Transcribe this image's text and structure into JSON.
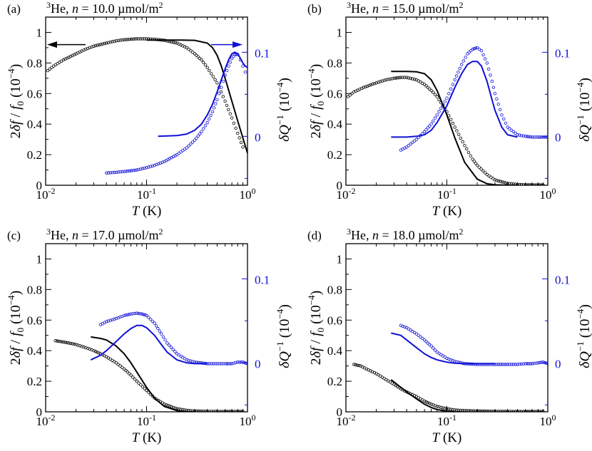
{
  "colors": {
    "black": "#000000",
    "blue": "#1010d8"
  },
  "chart_data": [
    {
      "type": "scatter",
      "panel": "(a)",
      "title": "3He, n = 10.0 µmol/m2",
      "title_parts": {
        "iso": "3",
        "el": "He, ",
        "n": "n",
        "eq": " = 10.0 µmol/m",
        "exp": "2"
      },
      "xlabel": "T (K)",
      "xscale": "log",
      "xlim": [
        0.01,
        1.0
      ],
      "ylabel_left": "2δf / f0 (10^-4)",
      "ylim_left": [
        0,
        1.1
      ],
      "ylabel_right": "δQ^-1 (10^-4)",
      "right_ticks": [
        "0",
        "0.1"
      ],
      "right_zero_at_left": 0.32,
      "right_tenth_at_left": 0.87,
      "arrows": "left-arrow on frequency data, right-arrow on dissipation data",
      "series": [
        {
          "name": "frequency shift data",
          "axis": "left",
          "marker": "open-circle",
          "x": [
            0.0105,
            0.012,
            0.015,
            0.02,
            0.025,
            0.03,
            0.04,
            0.05,
            0.06,
            0.08,
            0.1,
            0.12,
            0.15,
            0.2,
            0.25,
            0.3,
            0.35,
            0.4,
            0.5,
            0.6,
            0.7,
            0.8,
            0.9
          ],
          "y": [
            0.75,
            0.78,
            0.82,
            0.86,
            0.89,
            0.91,
            0.93,
            0.945,
            0.952,
            0.958,
            0.958,
            0.955,
            0.948,
            0.93,
            0.9,
            0.86,
            0.82,
            0.77,
            0.67,
            0.55,
            0.44,
            0.34,
            0.25
          ]
        },
        {
          "name": "frequency shift fit",
          "axis": "left",
          "marker": "line",
          "x": [
            0.1,
            0.2,
            0.3,
            0.4,
            0.45,
            0.5,
            0.55,
            0.6,
            0.7,
            0.8,
            0.9,
            1.0
          ],
          "y": [
            0.95,
            0.95,
            0.948,
            0.93,
            0.9,
            0.85,
            0.78,
            0.7,
            0.55,
            0.42,
            0.31,
            0.21
          ]
        },
        {
          "name": "dissipation data",
          "axis": "right",
          "marker": "open-circle",
          "x": [
            0.04,
            0.05,
            0.06,
            0.08,
            0.1,
            0.12,
            0.15,
            0.2,
            0.25,
            0.3,
            0.35,
            0.4,
            0.45,
            0.5,
            0.55,
            0.6,
            0.65,
            0.7,
            0.75,
            0.8,
            0.85,
            0.9,
            0.95
          ],
          "y": [
            0.08,
            0.085,
            0.09,
            0.1,
            0.115,
            0.13,
            0.155,
            0.2,
            0.245,
            0.295,
            0.35,
            0.41,
            0.48,
            0.56,
            0.64,
            0.72,
            0.78,
            0.83,
            0.855,
            0.855,
            0.82,
            0.78,
            0.74
          ]
        },
        {
          "name": "dissipation fit",
          "axis": "right",
          "marker": "line",
          "x": [
            0.13,
            0.2,
            0.25,
            0.3,
            0.35,
            0.4,
            0.45,
            0.5,
            0.55,
            0.6,
            0.65,
            0.7,
            0.75,
            0.8,
            0.85,
            0.9,
            0.95,
            1.0
          ],
          "y": [
            0.32,
            0.325,
            0.335,
            0.36,
            0.4,
            0.46,
            0.53,
            0.61,
            0.69,
            0.76,
            0.82,
            0.86,
            0.87,
            0.86,
            0.83,
            0.8,
            0.78,
            0.77
          ]
        }
      ]
    },
    {
      "type": "scatter",
      "panel": "(b)",
      "title": "3He, n = 15.0 µmol/m2",
      "title_parts": {
        "iso": "3",
        "el": "He, ",
        "n": "n",
        "eq": " = 15.0 µmol/m",
        "exp": "2"
      },
      "xlabel": "T (K)",
      "xscale": "log",
      "xlim": [
        0.01,
        1.0
      ],
      "ylabel_left": "2δf / f0 (10^-4)",
      "ylim_left": [
        0,
        1.1
      ],
      "ylabel_right": "δQ^-1 (10^-4)",
      "right_ticks": [
        "0",
        "0.1"
      ],
      "right_zero_at_left": 0.32,
      "right_tenth_at_left": 0.87,
      "series": [
        {
          "name": "frequency shift data",
          "axis": "left",
          "marker": "open-circle",
          "x": [
            0.0105,
            0.012,
            0.015,
            0.02,
            0.025,
            0.03,
            0.035,
            0.04,
            0.05,
            0.06,
            0.07,
            0.08,
            0.1,
            0.12,
            0.15,
            0.18,
            0.2,
            0.25,
            0.3,
            0.4,
            0.5,
            0.6,
            0.7,
            0.8,
            0.9
          ],
          "y": [
            0.58,
            0.61,
            0.64,
            0.67,
            0.69,
            0.7,
            0.705,
            0.705,
            0.69,
            0.66,
            0.62,
            0.58,
            0.48,
            0.38,
            0.26,
            0.17,
            0.13,
            0.07,
            0.035,
            0.012,
            0.005,
            0.003,
            0.002,
            0.002,
            0.002
          ]
        },
        {
          "name": "frequency shift fit",
          "axis": "left",
          "marker": "line",
          "x": [
            0.028,
            0.04,
            0.05,
            0.06,
            0.07,
            0.08,
            0.1,
            0.12,
            0.15,
            0.2,
            0.25,
            0.3,
            0.4,
            0.5
          ],
          "y": [
            0.745,
            0.745,
            0.742,
            0.73,
            0.69,
            0.62,
            0.46,
            0.31,
            0.15,
            0.04,
            0.01,
            0.003,
            0.0,
            0.0
          ]
        },
        {
          "name": "dissipation data",
          "axis": "right",
          "marker": "open-circle",
          "x": [
            0.035,
            0.04,
            0.05,
            0.06,
            0.07,
            0.08,
            0.1,
            0.12,
            0.14,
            0.16,
            0.18,
            0.2,
            0.22,
            0.25,
            0.28,
            0.3,
            0.35,
            0.4,
            0.5,
            0.6,
            0.7,
            0.8,
            0.9,
            1.0
          ],
          "y": [
            0.23,
            0.25,
            0.3,
            0.35,
            0.4,
            0.46,
            0.57,
            0.69,
            0.79,
            0.86,
            0.89,
            0.9,
            0.88,
            0.8,
            0.68,
            0.6,
            0.46,
            0.38,
            0.33,
            0.32,
            0.315,
            0.315,
            0.315,
            0.315
          ]
        },
        {
          "name": "dissipation fit",
          "axis": "right",
          "marker": "line",
          "x": [
            0.028,
            0.04,
            0.05,
            0.06,
            0.07,
            0.08,
            0.1,
            0.12,
            0.14,
            0.16,
            0.18,
            0.2,
            0.22,
            0.25,
            0.28,
            0.3,
            0.35,
            0.4,
            0.5
          ],
          "y": [
            0.315,
            0.315,
            0.32,
            0.33,
            0.36,
            0.41,
            0.52,
            0.64,
            0.73,
            0.79,
            0.81,
            0.81,
            0.78,
            0.68,
            0.56,
            0.49,
            0.38,
            0.33,
            0.315
          ]
        }
      ]
    },
    {
      "type": "scatter",
      "panel": "(c)",
      "title": "3He, n = 17.0 µmol/m2",
      "title_parts": {
        "iso": "3",
        "el": "He, ",
        "n": "n",
        "eq": " = 17.0 µmol/m",
        "exp": "2"
      },
      "xlabel": "T (K)",
      "xscale": "log",
      "xlim": [
        0.01,
        1.0
      ],
      "ylabel_left": "2δf / f0 (10^-4)",
      "ylim_left": [
        0,
        1.1
      ],
      "ylabel_right": "δQ^-1 (10^-4)",
      "right_ticks": [
        "0",
        "0.1"
      ],
      "right_zero_at_left": 0.32,
      "right_tenth_at_left": 0.87,
      "series": [
        {
          "name": "frequency shift data",
          "axis": "left",
          "marker": "open-circle",
          "x": [
            0.0125,
            0.014,
            0.017,
            0.02,
            0.025,
            0.03,
            0.035,
            0.04,
            0.05,
            0.06,
            0.07,
            0.08,
            0.1,
            0.12,
            0.15,
            0.2,
            0.25,
            0.3,
            0.4,
            0.5,
            0.6,
            0.7,
            0.8,
            0.9
          ],
          "y": [
            0.465,
            0.46,
            0.45,
            0.44,
            0.42,
            0.4,
            0.38,
            0.36,
            0.32,
            0.28,
            0.24,
            0.2,
            0.14,
            0.09,
            0.05,
            0.02,
            0.01,
            0.005,
            0.003,
            0.002,
            0.002,
            0.002,
            0.002,
            0.002
          ]
        },
        {
          "name": "frequency shift fit",
          "axis": "left",
          "marker": "line",
          "x": [
            0.028,
            0.035,
            0.04,
            0.05,
            0.06,
            0.07,
            0.08,
            0.1,
            0.12,
            0.15,
            0.2,
            0.25,
            0.3
          ],
          "y": [
            0.49,
            0.48,
            0.47,
            0.43,
            0.38,
            0.32,
            0.26,
            0.16,
            0.09,
            0.035,
            0.008,
            0.002,
            0.0
          ]
        },
        {
          "name": "dissipation data",
          "axis": "right",
          "marker": "open-circle",
          "x": [
            0.035,
            0.04,
            0.05,
            0.06,
            0.07,
            0.08,
            0.09,
            0.1,
            0.12,
            0.14,
            0.16,
            0.2,
            0.25,
            0.3,
            0.4,
            0.5,
            0.6,
            0.7,
            0.8,
            0.9,
            1.0
          ],
          "y": [
            0.57,
            0.59,
            0.61,
            0.63,
            0.64,
            0.645,
            0.64,
            0.63,
            0.58,
            0.51,
            0.45,
            0.38,
            0.34,
            0.325,
            0.315,
            0.315,
            0.315,
            0.315,
            0.325,
            0.325,
            0.315
          ]
        },
        {
          "name": "dissipation fit",
          "axis": "right",
          "marker": "line",
          "x": [
            0.028,
            0.035,
            0.04,
            0.05,
            0.06,
            0.07,
            0.08,
            0.09,
            0.1,
            0.12,
            0.14,
            0.16,
            0.2,
            0.25,
            0.3,
            0.4
          ],
          "y": [
            0.34,
            0.37,
            0.4,
            0.46,
            0.51,
            0.545,
            0.565,
            0.565,
            0.55,
            0.5,
            0.44,
            0.39,
            0.34,
            0.32,
            0.315,
            0.315
          ]
        }
      ]
    },
    {
      "type": "scatter",
      "panel": "(d)",
      "title": "3He, n = 18.0 µmol/m2",
      "title_parts": {
        "iso": "3",
        "el": "He, ",
        "n": "n",
        "eq": " = 18.0 µmol/m",
        "exp": "2"
      },
      "xlabel": "T (K)",
      "xscale": "log",
      "xlim": [
        0.01,
        1.0
      ],
      "ylabel_left": "2δf / f0 (10^-4)",
      "ylim_left": [
        0,
        1.1
      ],
      "ylabel_right": "δQ^-1 (10^-4)",
      "right_ticks": [
        "0",
        "0.1"
      ],
      "right_zero_at_left": 0.32,
      "right_tenth_at_left": 0.87,
      "series": [
        {
          "name": "frequency shift data",
          "axis": "left",
          "marker": "open-circle",
          "x": [
            0.012,
            0.014,
            0.016,
            0.02,
            0.025,
            0.03,
            0.035,
            0.04,
            0.05,
            0.06,
            0.07,
            0.08,
            0.1,
            0.12,
            0.15,
            0.2,
            0.3,
            0.4,
            0.5,
            0.6,
            0.7,
            0.8,
            0.9
          ],
          "y": [
            0.31,
            0.3,
            0.28,
            0.25,
            0.21,
            0.18,
            0.15,
            0.13,
            0.1,
            0.07,
            0.05,
            0.035,
            0.02,
            0.012,
            0.008,
            0.005,
            0.003,
            0.002,
            0.002,
            0.002,
            0.002,
            0.002,
            0.002
          ]
        },
        {
          "name": "frequency shift fit",
          "axis": "left",
          "marker": "line",
          "x": [
            0.028,
            0.035,
            0.04,
            0.05,
            0.06,
            0.07,
            0.08,
            0.1,
            0.12,
            0.15
          ],
          "y": [
            0.21,
            0.16,
            0.13,
            0.085,
            0.05,
            0.028,
            0.015,
            0.004,
            0.001,
            0.0
          ]
        },
        {
          "name": "dissipation data",
          "axis": "right",
          "marker": "open-circle",
          "x": [
            0.035,
            0.04,
            0.05,
            0.06,
            0.07,
            0.08,
            0.1,
            0.12,
            0.15,
            0.2,
            0.25,
            0.3,
            0.4,
            0.5,
            0.6,
            0.7,
            0.8,
            0.9,
            1.0
          ],
          "y": [
            0.565,
            0.55,
            0.51,
            0.47,
            0.43,
            0.39,
            0.35,
            0.33,
            0.315,
            0.31,
            0.31,
            0.31,
            0.31,
            0.31,
            0.315,
            0.315,
            0.32,
            0.325,
            0.315
          ]
        },
        {
          "name": "dissipation fit",
          "axis": "right",
          "marker": "line",
          "x": [
            0.028,
            0.035,
            0.04,
            0.05,
            0.06,
            0.07,
            0.08,
            0.1,
            0.12,
            0.15,
            0.2,
            0.3
          ],
          "y": [
            0.515,
            0.5,
            0.47,
            0.42,
            0.38,
            0.355,
            0.34,
            0.325,
            0.318,
            0.315,
            0.315,
            0.315
          ]
        }
      ]
    }
  ]
}
